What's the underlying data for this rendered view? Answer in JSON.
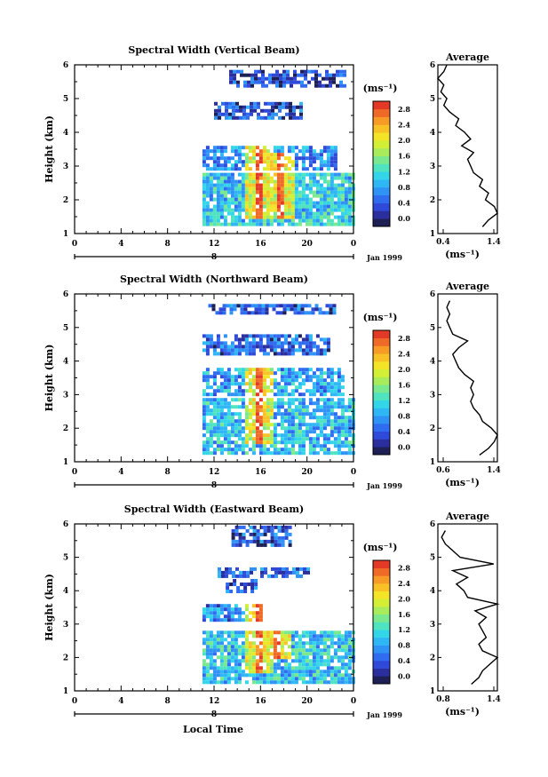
{
  "figure": {
    "x_label": "Local Time",
    "date_label": "Jan 1999",
    "day_label": "8",
    "colorbar_unit": "(ms⁻¹)",
    "colorbar_ticks": [
      "0.0",
      "0.4",
      "0.8",
      "1.2",
      "1.6",
      "2.0",
      "2.4",
      "2.8"
    ],
    "average_title": "Average",
    "average_unit": "(ms⁻¹)"
  },
  "colors": {
    "palette": [
      "#1d1f55",
      "#2b2f9e",
      "#2f4ad8",
      "#2f6cf0",
      "#2f92f5",
      "#2fb6f5",
      "#33d6e8",
      "#4fe3c0",
      "#7ae88e",
      "#a8ec5c",
      "#d2ee35",
      "#f3e427",
      "#f8c226",
      "#f79a26",
      "#f06a27",
      "#e33a28"
    ]
  },
  "chart_data": [
    {
      "type": "heatmap",
      "title": "Spectral Width (Vertical Beam)",
      "ylabel": "Height (km)",
      "xlim": [
        0,
        24
      ],
      "ylim": [
        1,
        6
      ],
      "x_ticks": [
        "0",
        "4",
        "8",
        "12",
        "16",
        "20",
        "0"
      ],
      "y_ticks": [
        "1",
        "2",
        "3",
        "4",
        "5",
        "6"
      ],
      "z_range": [
        0,
        3.0
      ],
      "bands": [
        {
          "y0": 5.4,
          "y1": 5.85,
          "x0": 13.3,
          "x1": 23.2,
          "base": 0.4,
          "density": 0.7
        },
        {
          "y0": 4.4,
          "y1": 4.9,
          "x0": 12.0,
          "x1": 19.5,
          "base": 0.5,
          "density": 0.75
        },
        {
          "y0": 2.9,
          "y1": 3.6,
          "x0": 11.0,
          "x1": 22.5,
          "base": 0.8,
          "density": 0.75
        },
        {
          "y0": 1.3,
          "y1": 2.8,
          "x0": 11.0,
          "x1": 24.0,
          "base": 1.1,
          "density": 0.9
        }
      ],
      "spikes": [
        {
          "x": 15.8,
          "y0": 1.5,
          "y1": 3.9
        },
        {
          "x": 17.6,
          "y0": 1.5,
          "y1": 3.4
        }
      ],
      "average": {
        "xlim": [
          0.4,
          1.4
        ],
        "x_ticks": [
          "0.4",
          "1.4"
        ],
        "heights": [
          1.2,
          1.4,
          1.6,
          1.8,
          2.0,
          2.2,
          2.4,
          2.6,
          2.8,
          3.0,
          3.2,
          3.4,
          3.6,
          3.8,
          4.0,
          4.2,
          4.4,
          4.6,
          4.8,
          5.0,
          5.2,
          5.4,
          5.6,
          5.8,
          6.0
        ],
        "values": [
          1.15,
          1.25,
          1.4,
          1.35,
          1.2,
          1.25,
          1.1,
          1.15,
          1.0,
          0.95,
          0.9,
          1.0,
          0.8,
          0.95,
          0.85,
          0.7,
          0.75,
          0.6,
          0.5,
          0.55,
          0.45,
          0.5,
          0.4,
          0.5,
          0.55
        ]
      }
    },
    {
      "type": "heatmap",
      "title": "Spectral Width (Northward Beam)",
      "ylabel": "Height (km)",
      "xlim": [
        0,
        24
      ],
      "ylim": [
        1,
        6
      ],
      "x_ticks": [
        "0",
        "4",
        "8",
        "12",
        "16",
        "20",
        "0"
      ],
      "y_ticks": [
        "1",
        "2",
        "3",
        "4",
        "5",
        "6"
      ],
      "z_range": [
        0,
        3.0
      ],
      "bands": [
        {
          "y0": 5.45,
          "y1": 5.7,
          "x0": 11.5,
          "x1": 22.5,
          "base": 0.5,
          "density": 0.8
        },
        {
          "y0": 4.2,
          "y1": 4.8,
          "x0": 11.0,
          "x1": 22.0,
          "base": 0.55,
          "density": 0.75
        },
        {
          "y0": 3.0,
          "y1": 3.8,
          "x0": 11.0,
          "x1": 23.0,
          "base": 0.9,
          "density": 0.75
        },
        {
          "y0": 1.3,
          "y1": 2.9,
          "x0": 11.0,
          "x1": 24.0,
          "base": 1.05,
          "density": 0.8
        }
      ],
      "spikes": [
        {
          "x": 15.8,
          "y0": 1.6,
          "y1": 3.8
        }
      ],
      "average": {
        "xlim": [
          0.4,
          1.4
        ],
        "x_ticks": [
          "0.6",
          "1.4"
        ],
        "heights": [
          1.2,
          1.4,
          1.6,
          1.8,
          2.0,
          2.2,
          2.4,
          2.6,
          2.8,
          3.0,
          3.2,
          3.4,
          3.6,
          3.8,
          4.0,
          4.2,
          4.4,
          4.6,
          4.8,
          5.0,
          5.2,
          5.4,
          5.6,
          5.8
        ],
        "values": [
          1.1,
          1.25,
          1.35,
          1.4,
          1.3,
          1.15,
          1.1,
          1.0,
          0.95,
          1.0,
          0.95,
          1.0,
          0.85,
          0.75,
          0.7,
          0.65,
          0.75,
          0.9,
          0.65,
          0.6,
          0.55,
          0.6,
          0.55,
          0.6
        ]
      }
    },
    {
      "type": "heatmap",
      "title": "Spectral Width (Eastward Beam)",
      "ylabel": "Height (km)",
      "xlim": [
        0,
        24
      ],
      "ylim": [
        1,
        6
      ],
      "x_ticks": [
        "0",
        "4",
        "8",
        "12",
        "16",
        "20",
        "0"
      ],
      "y_ticks": [
        "1",
        "2",
        "3",
        "4",
        "5",
        "6"
      ],
      "z_range": [
        0,
        3.0
      ],
      "bands": [
        {
          "y0": 5.4,
          "y1": 5.95,
          "x0": 13.5,
          "x1": 18.5,
          "base": 0.5,
          "density": 0.7
        },
        {
          "y0": 4.4,
          "y1": 4.7,
          "x0": 12.0,
          "x1": 20.0,
          "base": 0.6,
          "density": 0.7
        },
        {
          "y0": 4.0,
          "y1": 4.35,
          "x0": 13.0,
          "x1": 15.5,
          "base": 0.5,
          "density": 0.5
        },
        {
          "y0": 3.1,
          "y1": 3.6,
          "x0": 11.0,
          "x1": 16.0,
          "base": 0.7,
          "density": 0.75
        },
        {
          "y0": 1.3,
          "y1": 2.8,
          "x0": 11.0,
          "x1": 24.0,
          "base": 1.1,
          "density": 0.85
        }
      ],
      "spikes": [
        {
          "x": 15.8,
          "y0": 1.6,
          "y1": 3.6
        },
        {
          "x": 17.3,
          "y0": 2.0,
          "y1": 3.2
        }
      ],
      "average": {
        "xlim": [
          0.6,
          1.4
        ],
        "x_ticks": [
          "0.8",
          "1.4"
        ],
        "heights": [
          1.2,
          1.4,
          1.6,
          1.8,
          2.0,
          2.2,
          2.4,
          2.6,
          2.8,
          3.0,
          3.2,
          3.4,
          3.6,
          3.8,
          4.0,
          4.2,
          4.4,
          4.6,
          4.8,
          5.0,
          5.2,
          5.4,
          5.6,
          5.8
        ],
        "values": [
          1.05,
          1.15,
          1.2,
          1.3,
          1.4,
          1.2,
          1.15,
          1.25,
          1.2,
          1.15,
          1.25,
          1.1,
          1.4,
          1.0,
          0.95,
          0.85,
          1.0,
          0.8,
          1.35,
          0.9,
          0.8,
          0.7,
          0.65,
          0.7
        ]
      }
    }
  ]
}
